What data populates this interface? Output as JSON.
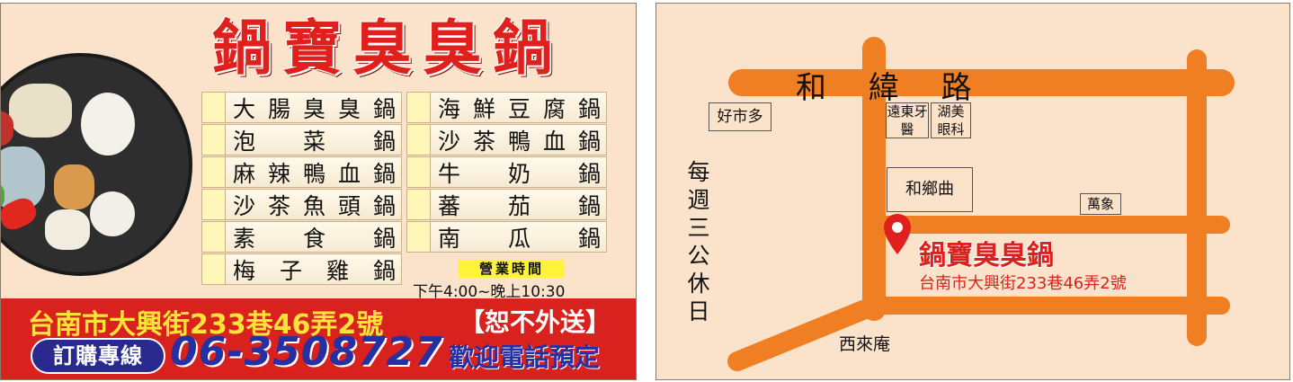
{
  "front": {
    "title": "鍋寶臭臭鍋",
    "menu_left": [
      "大腸臭臭鍋",
      "泡菜鍋",
      "麻辣鴨血鍋",
      "沙茶魚頭鍋",
      "素食鍋",
      "梅子雞鍋"
    ],
    "menu_right": [
      "海鮮豆腐鍋",
      "沙茶鴨血鍋",
      "牛奶鍋",
      "蕃茄鍋",
      "南瓜鍋"
    ],
    "hours_label": "營業時間",
    "hours_time": "下午4:00~晚上10:30",
    "address": "台南市大興街233巷46弄2號",
    "no_delivery": "【恕不外送】",
    "hotline_label": "訂購專線",
    "phone": "06-3508727",
    "welcome": "歡迎電話預定"
  },
  "back": {
    "main_road": "和 緯 路",
    "closed_note": "每週三公休日",
    "shops": {
      "costco_like": "好市多",
      "dental": "遠東牙醫",
      "optical": "湖美眼科",
      "hexiangqu": "和鄉曲",
      "wanxiang": "萬象",
      "xilaian": "西來庵"
    },
    "shop_name": "鍋寶臭臭鍋",
    "shop_address": "台南市大興街233巷46弄2號"
  },
  "colors": {
    "card_bg": "#fbe3cb",
    "red": "#d9221d",
    "road": "#ef7f22",
    "navy": "#2630a2",
    "yellow": "#ffe33a"
  }
}
